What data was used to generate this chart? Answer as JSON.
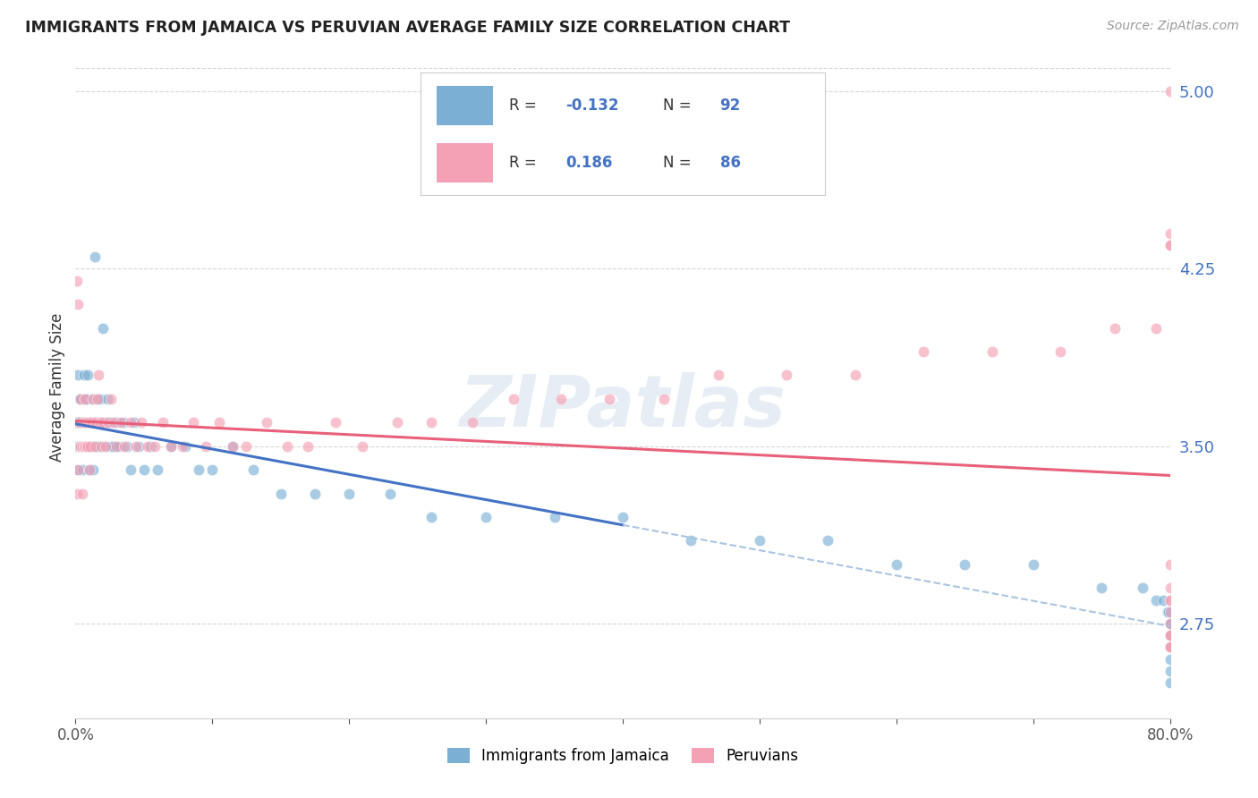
{
  "title": "IMMIGRANTS FROM JAMAICA VS PERUVIAN AVERAGE FAMILY SIZE CORRELATION CHART",
  "source": "Source: ZipAtlas.com",
  "ylabel": "Average Family Size",
  "xlim": [
    0.0,
    0.8
  ],
  "ylim": [
    2.35,
    5.15
  ],
  "yticks": [
    2.75,
    3.5,
    4.25,
    5.0
  ],
  "xticks": [
    0.0,
    0.1,
    0.2,
    0.3,
    0.4,
    0.5,
    0.6,
    0.7,
    0.8
  ],
  "background_color": "#ffffff",
  "watermark": "ZIPatlas",
  "blue_R": -0.132,
  "blue_N": 92,
  "pink_R": 0.186,
  "pink_N": 86,
  "blue_color": "#7bafd4",
  "pink_color": "#f4a0b5",
  "grid_color": "#cccccc",
  "blue_line_color": "#4472c4",
  "pink_line_color": "#e8607a",
  "blue_dash_color": "#aac4e0",
  "blue_scatter_x": [
    0.001,
    0.001,
    0.002,
    0.002,
    0.002,
    0.003,
    0.003,
    0.003,
    0.004,
    0.004,
    0.004,
    0.005,
    0.005,
    0.005,
    0.006,
    0.006,
    0.006,
    0.007,
    0.007,
    0.007,
    0.008,
    0.008,
    0.008,
    0.009,
    0.009,
    0.01,
    0.01,
    0.01,
    0.011,
    0.011,
    0.012,
    0.012,
    0.013,
    0.013,
    0.014,
    0.015,
    0.015,
    0.016,
    0.017,
    0.018,
    0.019,
    0.02,
    0.021,
    0.022,
    0.023,
    0.025,
    0.026,
    0.028,
    0.03,
    0.032,
    0.035,
    0.038,
    0.04,
    0.043,
    0.046,
    0.05,
    0.055,
    0.06,
    0.07,
    0.08,
    0.09,
    0.1,
    0.115,
    0.13,
    0.15,
    0.175,
    0.2,
    0.23,
    0.26,
    0.3,
    0.35,
    0.4,
    0.45,
    0.5,
    0.55,
    0.6,
    0.65,
    0.7,
    0.75,
    0.78,
    0.79,
    0.795,
    0.798,
    0.799,
    0.8,
    0.8,
    0.8,
    0.8,
    0.8,
    0.8,
    0.8,
    0.8
  ],
  "blue_scatter_y": [
    3.5,
    3.6,
    3.4,
    3.6,
    3.8,
    3.5,
    3.7,
    3.6,
    3.5,
    3.6,
    3.7,
    3.4,
    3.6,
    3.5,
    3.7,
    3.5,
    3.8,
    3.6,
    3.5,
    3.7,
    3.5,
    3.7,
    3.5,
    3.6,
    3.8,
    3.5,
    3.6,
    3.4,
    3.6,
    3.5,
    3.7,
    3.5,
    3.6,
    3.4,
    4.3,
    3.6,
    3.5,
    3.7,
    3.5,
    3.7,
    3.6,
    4.0,
    3.5,
    3.6,
    3.7,
    3.6,
    3.5,
    3.5,
    3.6,
    3.5,
    3.6,
    3.5,
    3.4,
    3.6,
    3.5,
    3.4,
    3.5,
    3.4,
    3.5,
    3.5,
    3.4,
    3.4,
    3.5,
    3.4,
    3.3,
    3.3,
    3.3,
    3.3,
    3.2,
    3.2,
    3.2,
    3.2,
    3.1,
    3.1,
    3.1,
    3.0,
    3.0,
    3.0,
    2.9,
    2.9,
    2.85,
    2.85,
    2.8,
    2.8,
    2.75,
    2.75,
    2.7,
    2.7,
    2.65,
    2.6,
    2.55,
    2.5
  ],
  "pink_scatter_x": [
    0.001,
    0.001,
    0.002,
    0.002,
    0.003,
    0.003,
    0.004,
    0.004,
    0.005,
    0.005,
    0.006,
    0.006,
    0.007,
    0.007,
    0.008,
    0.008,
    0.009,
    0.01,
    0.01,
    0.011,
    0.012,
    0.013,
    0.014,
    0.015,
    0.016,
    0.017,
    0.018,
    0.019,
    0.02,
    0.022,
    0.024,
    0.026,
    0.028,
    0.03,
    0.033,
    0.036,
    0.04,
    0.044,
    0.048,
    0.053,
    0.058,
    0.064,
    0.07,
    0.078,
    0.086,
    0.095,
    0.105,
    0.115,
    0.125,
    0.14,
    0.155,
    0.17,
    0.19,
    0.21,
    0.235,
    0.26,
    0.29,
    0.32,
    0.355,
    0.39,
    0.43,
    0.47,
    0.52,
    0.57,
    0.62,
    0.67,
    0.72,
    0.76,
    0.79,
    0.8,
    0.8,
    0.8,
    0.8,
    0.8,
    0.8,
    0.8,
    0.8,
    0.8,
    0.8,
    0.8,
    0.8,
    0.8,
    0.8,
    0.8,
    0.8,
    0.8
  ],
  "pink_scatter_y": [
    3.3,
    4.2,
    3.4,
    4.1,
    3.5,
    3.6,
    3.7,
    3.5,
    3.5,
    3.3,
    3.5,
    3.6,
    3.5,
    3.7,
    3.6,
    3.5,
    3.5,
    3.4,
    3.6,
    3.5,
    3.6,
    3.7,
    3.5,
    3.6,
    3.7,
    3.8,
    3.6,
    3.5,
    3.6,
    3.5,
    3.6,
    3.7,
    3.6,
    3.5,
    3.6,
    3.5,
    3.6,
    3.5,
    3.6,
    3.5,
    3.5,
    3.6,
    3.5,
    3.5,
    3.6,
    3.5,
    3.6,
    3.5,
    3.5,
    3.6,
    3.5,
    3.5,
    3.6,
    3.5,
    3.6,
    3.6,
    3.6,
    3.7,
    3.7,
    3.7,
    3.7,
    3.8,
    3.8,
    3.8,
    3.9,
    3.9,
    3.9,
    4.0,
    4.0,
    2.65,
    2.7,
    2.75,
    2.8,
    2.85,
    2.85,
    2.9,
    2.65,
    2.7,
    2.65,
    4.35,
    4.4,
    3.0,
    2.65,
    2.7,
    5.0,
    4.35
  ]
}
